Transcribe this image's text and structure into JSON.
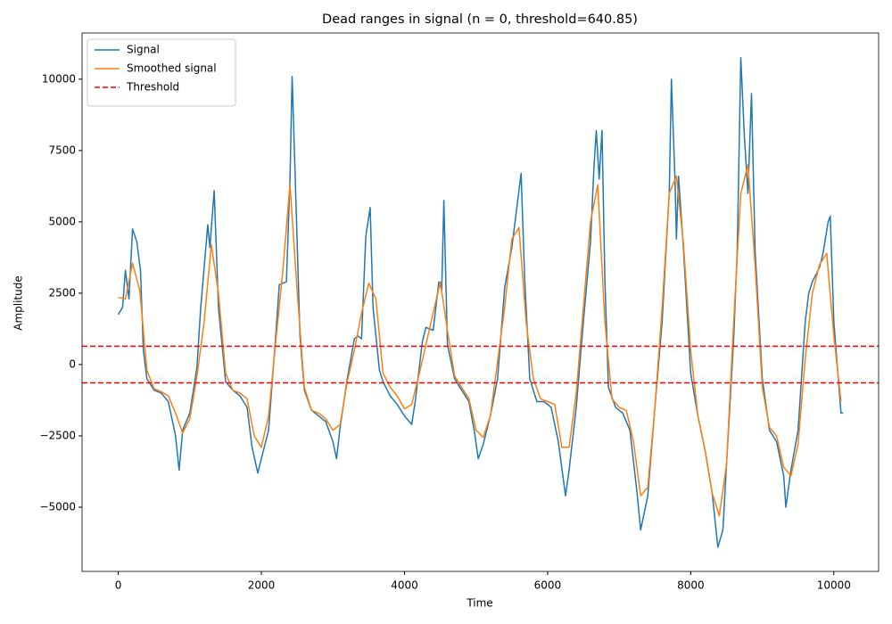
{
  "chart_data": {
    "type": "line",
    "title": "Dead ranges in signal (n = 0, threshold=640.85)",
    "x_label": "Time",
    "y_label": "Amplitude",
    "xlim": [
      -506,
      10626
    ],
    "ylim": [
      -7250,
      11620
    ],
    "xticks": [
      0,
      2000,
      4000,
      6000,
      8000,
      10000
    ],
    "yticks": [
      {
        "value": -5000,
        "label": "−5000"
      },
      {
        "value": -2500,
        "label": "−2500"
      },
      0,
      2500,
      5000,
      7500,
      10000
    ],
    "legend": "upper left",
    "series": [
      {
        "name": "Signal",
        "color": "#1f77b4",
        "x": [
          0,
          60,
          100,
          150,
          200,
          260,
          310,
          350,
          400,
          500,
          600,
          700,
          800,
          850,
          900,
          1000,
          1100,
          1150,
          1250,
          1280,
          1340,
          1400,
          1500,
          1600,
          1700,
          1800,
          1870,
          1950,
          2000,
          2100,
          2200,
          2250,
          2350,
          2400,
          2430,
          2480,
          2540,
          2600,
          2700,
          2800,
          2900,
          3000,
          3050,
          3100,
          3200,
          3300,
          3350,
          3400,
          3460,
          3520,
          3560,
          3650,
          3700,
          3800,
          3900,
          4000,
          4100,
          4150,
          4250,
          4300,
          4400,
          4480,
          4520,
          4550,
          4600,
          4700,
          4800,
          4900,
          4980,
          5030,
          5100,
          5200,
          5300,
          5400,
          5500,
          5560,
          5630,
          5680,
          5750,
          5850,
          5950,
          6050,
          6150,
          6250,
          6300,
          6400,
          6500,
          6600,
          6650,
          6680,
          6720,
          6760,
          6800,
          6850,
          6950,
          7050,
          7150,
          7250,
          7300,
          7400,
          7500,
          7600,
          7650,
          7700,
          7730,
          7780,
          7800,
          7830,
          7900,
          8000,
          8100,
          8200,
          8300,
          8380,
          8450,
          8500,
          8600,
          8650,
          8700,
          8750,
          8800,
          8850,
          8900,
          9000,
          9100,
          9200,
          9300,
          9330,
          9400,
          9500,
          9600,
          9650,
          9700,
          9800,
          9850,
          9920,
          9950,
          10000,
          10100,
          10130
        ],
        "values": [
          1750,
          2000,
          3300,
          2300,
          4750,
          4300,
          3300,
          500,
          -500,
          -900,
          -1000,
          -1300,
          -2500,
          -3700,
          -2300,
          -1700,
          -100,
          1900,
          4900,
          4100,
          6100,
          2000,
          -600,
          -900,
          -1100,
          -1500,
          -2900,
          -3800,
          -3300,
          -2300,
          1000,
          2800,
          2900,
          6500,
          10100,
          6000,
          1000,
          -900,
          -1600,
          -1800,
          -2000,
          -2700,
          -3300,
          -2200,
          -500,
          900,
          1000,
          900,
          4500,
          5500,
          2000,
          -200,
          -600,
          -1100,
          -1400,
          -1800,
          -2100,
          -1300,
          800,
          1300,
          1200,
          2900,
          2600,
          5750,
          700,
          -500,
          -900,
          -1300,
          -2400,
          -3300,
          -2800,
          -1800,
          -500,
          2700,
          4100,
          5300,
          6700,
          3000,
          -500,
          -1300,
          -1300,
          -1500,
          -2700,
          -4600,
          -3700,
          -1500,
          1500,
          4300,
          7000,
          8200,
          6500,
          8200,
          3000,
          -800,
          -1500,
          -1700,
          -2300,
          -4500,
          -5800,
          -4600,
          -1500,
          1500,
          3800,
          6000,
          10000,
          6500,
          4400,
          6600,
          4000,
          -300,
          -1800,
          -3000,
          -4500,
          -6400,
          -5800,
          -3500,
          900,
          4000,
          10750,
          8000,
          6000,
          9500,
          4000,
          -500,
          -2300,
          -2700,
          -3900,
          -5000,
          -3700,
          -2300,
          1500,
          2500,
          2900,
          3400,
          3900,
          5000,
          5200,
          1500,
          -1700,
          -1700
        ]
      },
      {
        "name": "Smoothed signal",
        "color": "#ff7f0e",
        "x": [
          0,
          100,
          200,
          300,
          400,
          500,
          600,
          700,
          800,
          900,
          1000,
          1100,
          1200,
          1300,
          1400,
          1500,
          1600,
          1700,
          1800,
          1900,
          2000,
          2100,
          2200,
          2300,
          2400,
          2500,
          2600,
          2700,
          2800,
          2900,
          3000,
          3100,
          3200,
          3300,
          3400,
          3500,
          3600,
          3700,
          3800,
          3900,
          4000,
          4100,
          4200,
          4300,
          4400,
          4500,
          4600,
          4700,
          4800,
          4900,
          5000,
          5100,
          5200,
          5300,
          5400,
          5500,
          5600,
          5700,
          5800,
          5900,
          6000,
          6100,
          6200,
          6300,
          6400,
          6500,
          6600,
          6700,
          6800,
          6900,
          7000,
          7100,
          7200,
          7300,
          7400,
          7500,
          7600,
          7700,
          7800,
          7900,
          8000,
          8100,
          8200,
          8300,
          8400,
          8500,
          8600,
          8700,
          8800,
          8900,
          9000,
          9100,
          9200,
          9300,
          9400,
          9500,
          9600,
          9700,
          9800,
          9900,
          10000,
          10100
        ],
        "values": [
          2350,
          2300,
          3550,
          2600,
          -200,
          -850,
          -950,
          -1100,
          -1700,
          -2400,
          -1900,
          -400,
          1500,
          4200,
          2500,
          -300,
          -900,
          -1000,
          -1200,
          -2500,
          -2900,
          -1800,
          800,
          3300,
          6300,
          2600,
          -800,
          -1600,
          -1700,
          -1900,
          -2300,
          -2100,
          -600,
          500,
          1800,
          2850,
          2300,
          -300,
          -800,
          -1100,
          -1550,
          -1400,
          -400,
          700,
          1800,
          2900,
          1200,
          -400,
          -800,
          -1200,
          -2300,
          -2550,
          -1800,
          100,
          2000,
          4400,
          4800,
          1500,
          -500,
          -1200,
          -1300,
          -1400,
          -2900,
          -2900,
          -1000,
          2000,
          5000,
          6300,
          1500,
          -1200,
          -1500,
          -1600,
          -2700,
          -4600,
          -4300,
          -1500,
          2000,
          6000,
          6600,
          4200,
          500,
          -1800,
          -3000,
          -4500,
          -5300,
          -3500,
          1500,
          6000,
          7000,
          3500,
          -800,
          -2200,
          -2500,
          -3600,
          -3900,
          -2800,
          200,
          2500,
          3500,
          3900,
          1000,
          -1300
        ]
      }
    ],
    "hlines": {
      "name": "Threshold",
      "color": "#ff0000",
      "values": [
        640.85,
        -640.85
      ]
    }
  }
}
